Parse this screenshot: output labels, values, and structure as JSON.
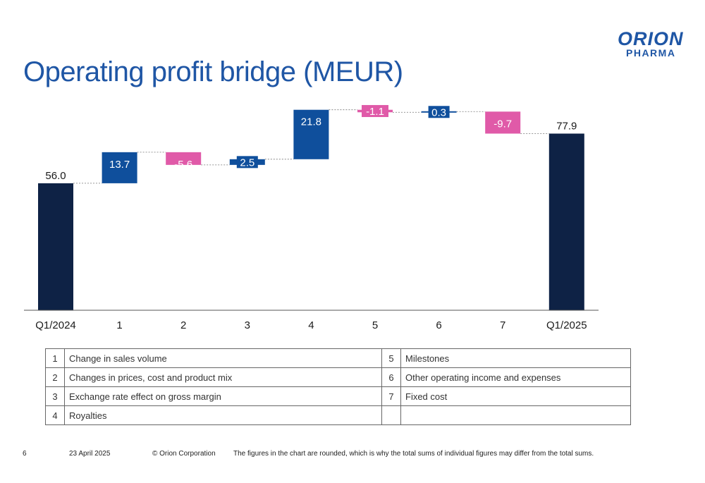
{
  "page": {
    "title": "Operating profit bridge (MEUR)",
    "logo_line1": "ORION",
    "logo_line2": "PHARMA"
  },
  "chart_data": {
    "type": "waterfall",
    "title": "Operating profit bridge (MEUR)",
    "categories": [
      "Q1/2024",
      "1",
      "2",
      "3",
      "4",
      "5",
      "6",
      "7",
      "Q1/2025"
    ],
    "values": [
      56.0,
      13.7,
      -5.6,
      2.5,
      21.8,
      -1.1,
      0.3,
      -9.7,
      77.9
    ],
    "labels": [
      "56.0",
      "13.7",
      "-5.6",
      "2.5",
      "21.8",
      "-1.1",
      "0.3",
      "-9.7",
      "77.9"
    ],
    "kinds": [
      "total",
      "delta",
      "delta",
      "delta",
      "delta",
      "delta",
      "delta",
      "delta",
      "total"
    ],
    "ylim": [
      0,
      90
    ],
    "colors": {
      "total": "#0e2245",
      "increase": "#0f4f9c",
      "decrease": "#e05aa8",
      "connector": "#777777"
    }
  },
  "legend": {
    "rows": [
      {
        "n1": "1",
        "d1": "Change in sales volume",
        "n2": "5",
        "d2": "Milestones"
      },
      {
        "n1": "2",
        "d1": "Changes in prices, cost and product mix",
        "n2": "6",
        "d2": "Other operating income and expenses"
      },
      {
        "n1": "3",
        "d1": "Exchange rate effect on gross margin",
        "n2": "7",
        "d2": "Fixed cost"
      },
      {
        "n1": "4",
        "d1": "Royalties",
        "n2": "",
        "d2": ""
      }
    ]
  },
  "footer": {
    "page": "6",
    "date": "23 April 2025",
    "copyright": "© Orion Corporation",
    "note": "The figures in the chart are rounded, which is why the total sums of individual figures may differ from the total sums."
  }
}
